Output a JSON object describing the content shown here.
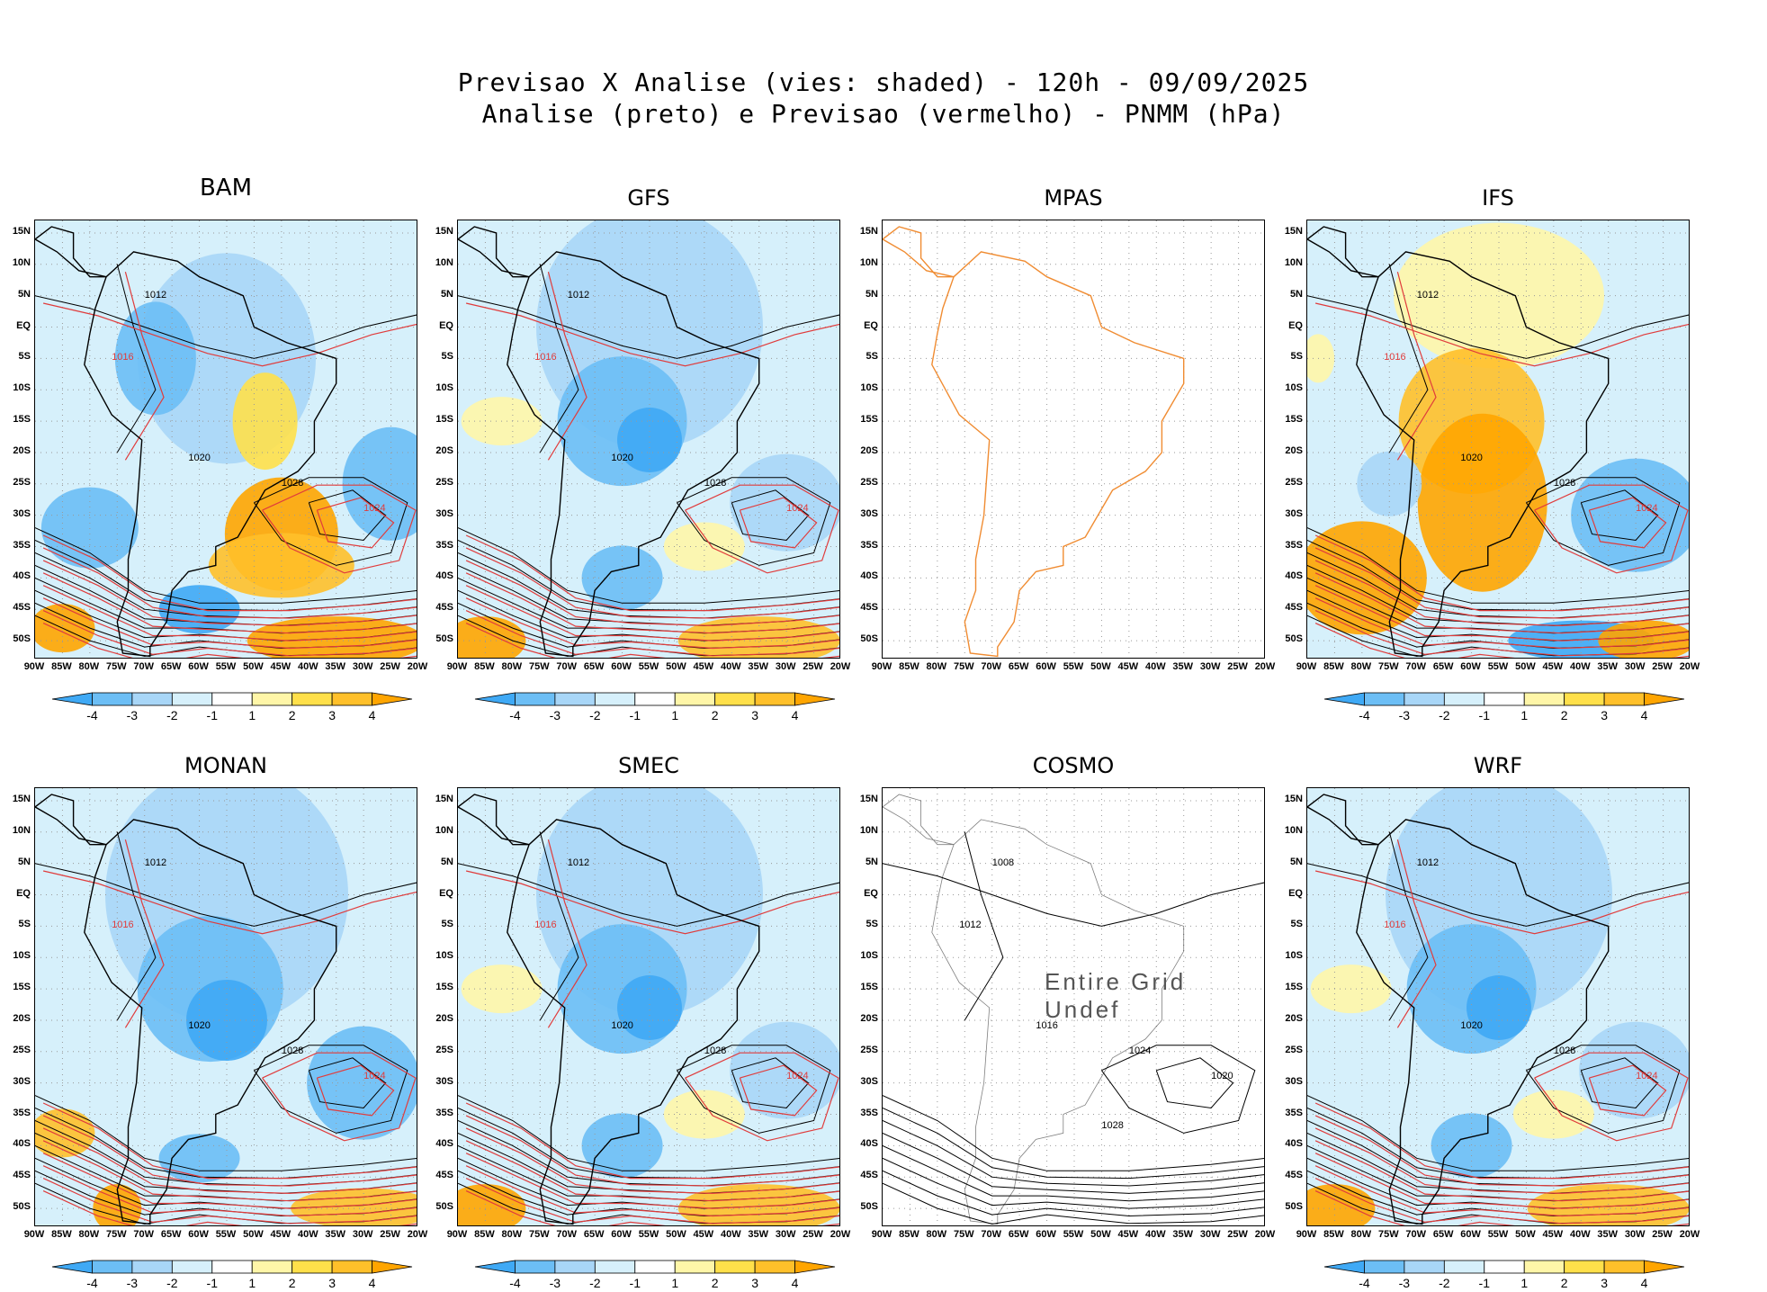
{
  "figure": {
    "title_line1": "Previsao X Analise (vies: shaded) - 120h - 09/09/2025",
    "title_line2": "Analise (preto) e Previsao (vermelho) - PNMM (hPa)"
  },
  "axes": {
    "lat_labels": [
      "15N",
      "10N",
      "5N",
      "EQ",
      "5S",
      "10S",
      "15S",
      "20S",
      "25S",
      "30S",
      "35S",
      "40S",
      "45S",
      "50S"
    ],
    "lon_labels": [
      "90W",
      "85W",
      "80W",
      "75W",
      "70W",
      "65W",
      "60W",
      "55W",
      "50W",
      "45W",
      "40W",
      "35W",
      "30W",
      "25W",
      "20W"
    ]
  },
  "colorbar": {
    "labels": [
      "-4",
      "-3",
      "-2",
      "-1",
      "1",
      "2",
      "3",
      "4"
    ],
    "colors": [
      "#3fa9f5",
      "#6cbef5",
      "#a8d6f7",
      "#d6f0fb",
      "#ffffff",
      "#fff6a8",
      "#ffe04a",
      "#ffc02a",
      "#ffa500"
    ]
  },
  "panels": [
    {
      "name": "BAM",
      "bias": "mixed-positive",
      "contours": [
        "1012",
        "1016",
        "1020",
        "1024",
        "1028"
      ]
    },
    {
      "name": "GFS",
      "bias": "mixed-negative",
      "contours": [
        "1012",
        "1016",
        "1020",
        "1024",
        "1028"
      ]
    },
    {
      "name": "MPAS",
      "bias": "none",
      "contours": []
    },
    {
      "name": "IFS",
      "bias": "strong-positive",
      "contours": [
        "1012",
        "1016",
        "1020",
        "1024",
        "1028"
      ]
    },
    {
      "name": "MONAN",
      "bias": "negative",
      "contours": [
        "1012",
        "1016",
        "1020",
        "1024",
        "1028"
      ]
    },
    {
      "name": "SMEC",
      "bias": "mixed-negative",
      "contours": [
        "1012",
        "1016",
        "1020",
        "1024",
        "1028"
      ]
    },
    {
      "name": "COSMO",
      "bias": "none",
      "contours": [
        "1008",
        "1012",
        "1016",
        "1020",
        "1024",
        "1028"
      ],
      "overlay": "Entire Grid Undef"
    },
    {
      "name": "WRF",
      "bias": "mixed-negative",
      "contours": [
        "1012",
        "1016",
        "1020",
        "1024",
        "1028"
      ]
    }
  ]
}
